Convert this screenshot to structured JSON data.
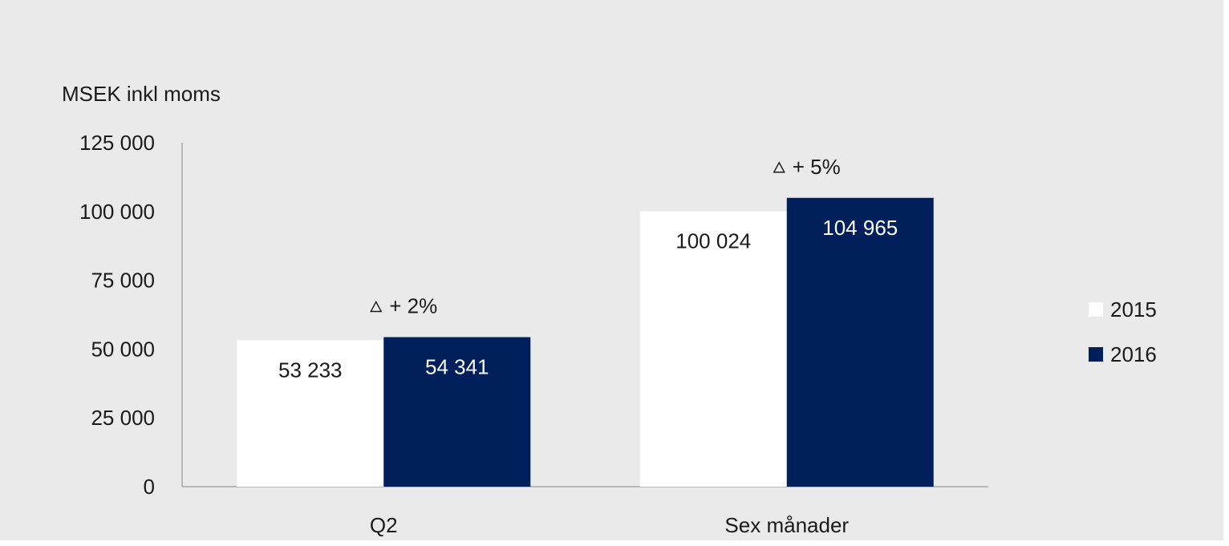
{
  "chart_data": {
    "type": "bar",
    "ylabel": "MSEK inkl moms",
    "categories": [
      "Q2",
      "Sex månader"
    ],
    "series": [
      {
        "name": "2015",
        "values": [
          53233,
          100024
        ],
        "labels": [
          "53 233",
          "100 024"
        ]
      },
      {
        "name": "2016",
        "values": [
          54341,
          104965
        ],
        "labels": [
          "54 341",
          "104 965"
        ]
      }
    ],
    "ylim": [
      0,
      125000
    ],
    "yticks": [
      0,
      25000,
      50000,
      75000,
      100000,
      125000
    ],
    "ytick_labels": [
      "0",
      "25 000",
      "50 000",
      "75 000",
      "100 000",
      "125 000"
    ],
    "annotations": [
      "+ 2%",
      "+ 5%"
    ],
    "annotation_icon": "triangle-delta-icon",
    "legend_position": "right",
    "grid": false,
    "colors": {
      "2015": "#ffffff",
      "2016": "#001f5b",
      "background": "#eaeaea",
      "axis": "#a6a6a6",
      "text_on_dark": "#ffffff",
      "text": "#1a1a1a"
    }
  }
}
